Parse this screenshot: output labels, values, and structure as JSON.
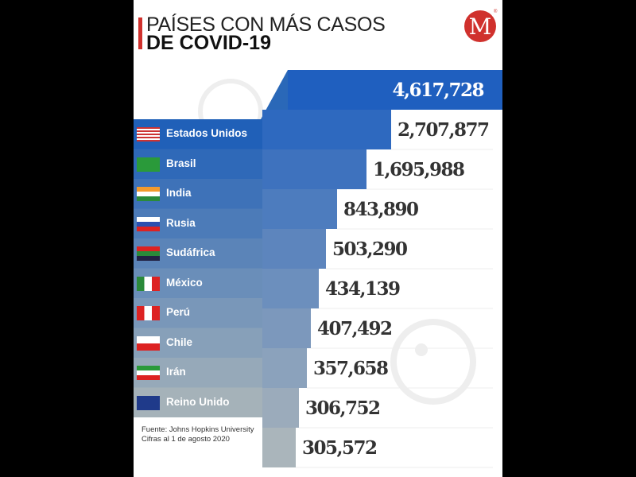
{
  "title_line1": "PAÍSES CON MÁS CASOS",
  "title_line2": "DE COVID-19",
  "logo_letter": "M",
  "logo_mark": "®",
  "source": "Fuente: Johns Hopkins University",
  "date_note": "Cifras al 1 de agosto 2020",
  "colors": {
    "top": "#1f5fbf",
    "bottom": "#aab5bb",
    "accent": "#d0312d"
  },
  "chart_data": {
    "type": "bar",
    "title": "PAÍSES CON MÁS CASOS DE COVID-19",
    "categories": [
      "Estados Unidos",
      "Brasil",
      "India",
      "Rusia",
      "Sudáfrica",
      "México",
      "Perú",
      "Chile",
      "Irán",
      "Reino Unido"
    ],
    "values": [
      4617728,
      2707877,
      1695988,
      843890,
      503290,
      434139,
      407492,
      357658,
      306752,
      305572
    ],
    "value_labels": [
      "4,617,728",
      "2,707,877",
      "1,695,988",
      "843,890",
      "503,290",
      "434,139",
      "407,492",
      "357,658",
      "306,752",
      "305,572"
    ],
    "extra_value_label": "305,572",
    "xlabel": "",
    "ylabel": ""
  }
}
